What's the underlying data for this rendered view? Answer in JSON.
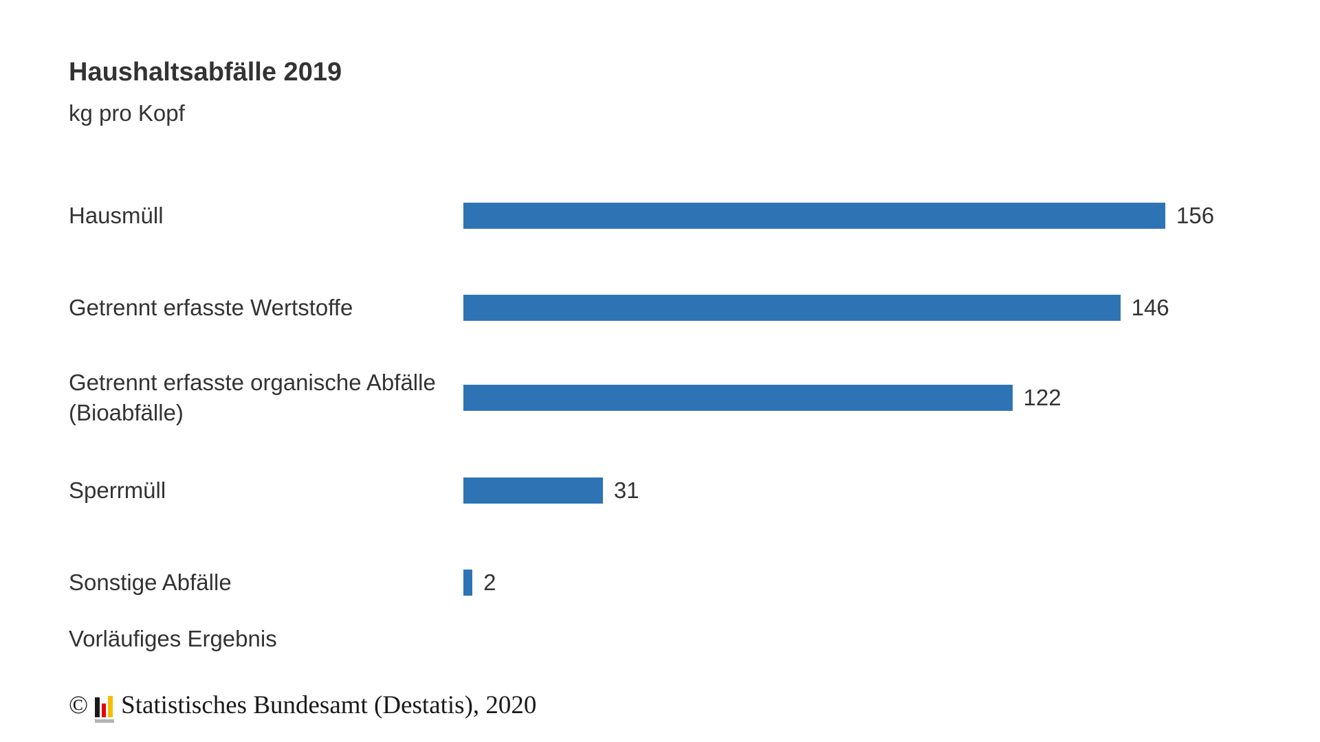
{
  "page": {
    "background": "#ffffff"
  },
  "chart_data": {
    "type": "bar",
    "orientation": "horizontal",
    "title": "Haushaltsabfälle 2019",
    "subtitle": "kg pro Kopf",
    "categories": [
      "Hausmüll",
      "Getrennt erfasste Wertstoffe",
      "Getrennt erfasste organische Abfälle (Bioabfälle)",
      "Sperrmüll",
      "Sonstige Abfälle"
    ],
    "values": [
      156,
      146,
      122,
      31,
      2
    ],
    "xlim": [
      0,
      156
    ],
    "grid": "off",
    "legend": "none",
    "value_labels": "end-of-bar",
    "bar_color": "#2e74b5",
    "text_color": "#333333",
    "note": "Vorläufiges Ergebnis"
  },
  "footer": {
    "copyright_symbol": "©",
    "source_text": "Statistisches Bundesamt (Destatis), 2020",
    "logo": {
      "name": "destatis-mini-bar-chart",
      "colors": {
        "black": "#1a1a1a",
        "red": "#e3000f",
        "gold": "#f6bd00",
        "gray": "#b2b2b2"
      }
    }
  }
}
